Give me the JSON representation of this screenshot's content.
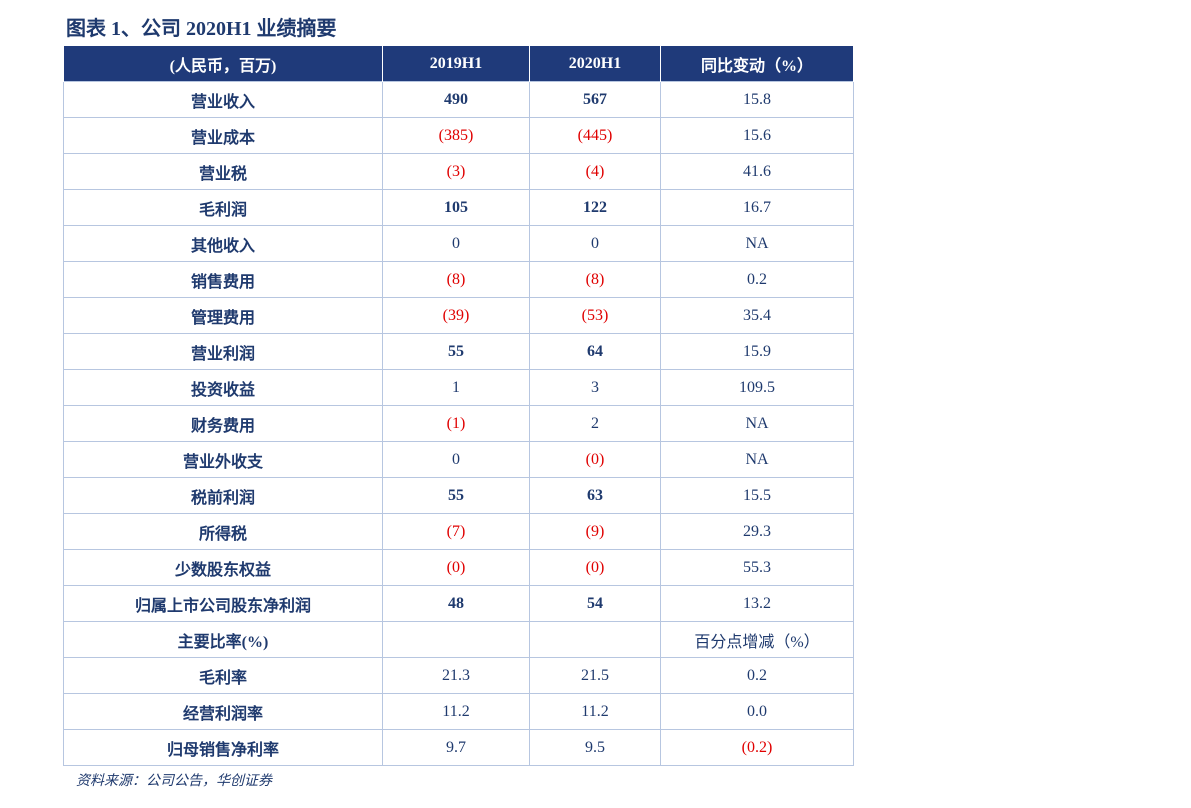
{
  "title": "图表 1、公司 2020H1 业绩摘要",
  "table": {
    "header": [
      "(人民币，百万)",
      "2019H1",
      "2020H1",
      "同比变动（%）"
    ],
    "rows": [
      {
        "label": "营业收入",
        "cells": [
          "490",
          "567",
          "15.8"
        ],
        "bold": true
      },
      {
        "label": "营业成本",
        "cells": [
          "(385)",
          "(445)",
          "15.6"
        ]
      },
      {
        "label": "营业税",
        "cells": [
          "(3)",
          "(4)",
          "41.6"
        ]
      },
      {
        "label": "毛利润",
        "cells": [
          "105",
          "122",
          "16.7"
        ],
        "bold": true
      },
      {
        "label": "其他收入",
        "cells": [
          "0",
          "0",
          "NA"
        ]
      },
      {
        "label": "销售费用",
        "cells": [
          "(8)",
          "(8)",
          "0.2"
        ]
      },
      {
        "label": "管理费用",
        "cells": [
          "(39)",
          "(53)",
          "35.4"
        ]
      },
      {
        "label": "营业利润",
        "cells": [
          "55",
          "64",
          "15.9"
        ],
        "bold": true
      },
      {
        "label": "投资收益",
        "cells": [
          "1",
          "3",
          "109.5"
        ]
      },
      {
        "label": "财务费用",
        "cells": [
          "(1)",
          "2",
          "NA"
        ]
      },
      {
        "label": "营业外收支",
        "cells": [
          "0",
          "(0)",
          "NA"
        ]
      },
      {
        "label": "税前利润",
        "cells": [
          "55",
          "63",
          "15.5"
        ],
        "bold": true
      },
      {
        "label": "所得税",
        "cells": [
          "(7)",
          "(9)",
          "29.3"
        ]
      },
      {
        "label": "少数股东权益",
        "cells": [
          "(0)",
          "(0)",
          "55.3"
        ]
      },
      {
        "label": "归属上市公司股东净利润",
        "cells": [
          "48",
          "54",
          "13.2"
        ],
        "bold": true
      },
      {
        "label": "主要比率(%)",
        "cells": [
          null,
          null,
          "百分点增减（%）"
        ]
      },
      {
        "label": "毛利率",
        "cells": [
          "21.3",
          "21.5",
          "0.2"
        ]
      },
      {
        "label": "经营利润率",
        "cells": [
          "11.2",
          "11.2",
          "0.0"
        ]
      },
      {
        "label": "归母销售净利率",
        "cells": [
          "9.7",
          "9.5",
          "(0.2)"
        ]
      }
    ]
  },
  "source": "资料来源：公司公告，华创证券"
}
